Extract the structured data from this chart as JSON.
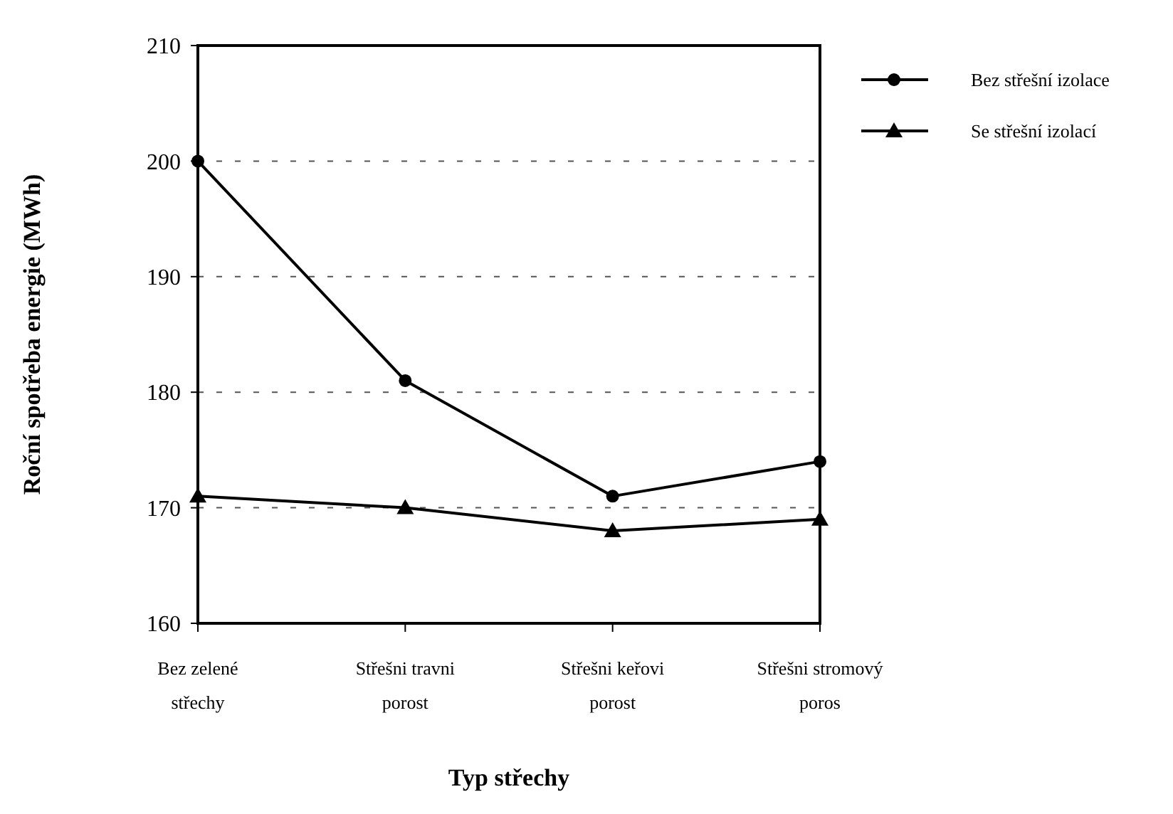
{
  "chart_data": {
    "type": "line",
    "xlabel": "Typ střechy",
    "ylabel": "Roční spotřeba energie (MWh)",
    "categories": [
      "Bez zelené střechy",
      "Střešni travni porost",
      "Střešni keřovi porost",
      "Střešni stromový poros"
    ],
    "series": [
      {
        "name": "Bez střešní izolace",
        "color": "#000000",
        "marker": "circle",
        "values": [
          200,
          181,
          171,
          174
        ]
      },
      {
        "name": "Se střešní izolací",
        "color": "#000000",
        "marker": "triangle",
        "values": [
          171,
          170,
          168,
          169
        ]
      }
    ],
    "ylim": [
      160,
      210
    ],
    "yticks": [
      160,
      170,
      180,
      190,
      200,
      210
    ],
    "grid": "y",
    "legend": "top right",
    "line_style": "solid"
  }
}
